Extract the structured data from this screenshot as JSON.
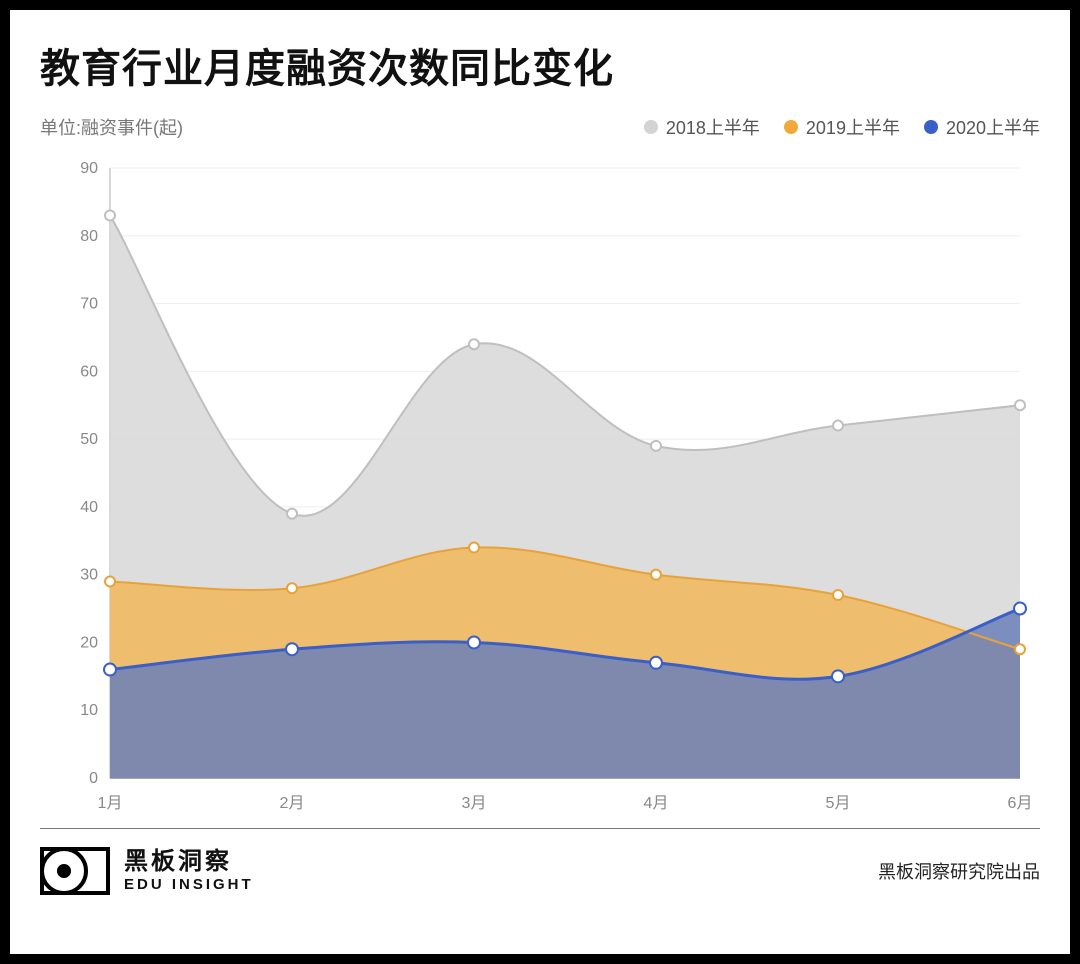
{
  "title": "教育行业月度融资次数同比变化",
  "unit_label": "单位:融资事件(起)",
  "legend": [
    {
      "label": "2018上半年",
      "color": "#d3d3d3"
    },
    {
      "label": "2019上半年",
      "color": "#f0a93a"
    },
    {
      "label": "2020上半年",
      "color": "#3a5fc8"
    }
  ],
  "chart": {
    "type": "area",
    "categories": [
      "1月",
      "2月",
      "3月",
      "4月",
      "5月",
      "6月"
    ],
    "series": [
      {
        "name": "2018上半年",
        "values": [
          83,
          39,
          64,
          49,
          52,
          55
        ],
        "fill": "#d9d9d9",
        "fill_opacity": 0.9,
        "line_color": "#bfbfbf",
        "line_width": 2,
        "marker_color": "#ffffff",
        "marker_stroke": "#bfbfbf",
        "marker_radius": 5
      },
      {
        "name": "2019上半年",
        "values": [
          29,
          28,
          34,
          30,
          27,
          19
        ],
        "fill": "#f2b75a",
        "fill_opacity": 0.85,
        "line_color": "#e8a23a",
        "line_width": 2,
        "marker_color": "#ffffff",
        "marker_stroke": "#e8a23a",
        "marker_radius": 5
      },
      {
        "name": "2020上半年",
        "values": [
          16,
          19,
          20,
          17,
          15,
          25
        ],
        "fill": "#6a80b8",
        "fill_opacity": 0.85,
        "line_color": "#3a5fc8",
        "line_width": 3,
        "marker_color": "#ffffff",
        "marker_stroke": "#3a5fc8",
        "marker_radius": 6
      }
    ],
    "y_axis": {
      "min": 0,
      "max": 90,
      "step": 10
    },
    "grid_color": "#eeeeee",
    "title_fontsize": 40,
    "label_fontsize": 16,
    "background_color": "#ffffff"
  },
  "footer": {
    "brand_cn": "黑板洞察",
    "brand_en": "EDU INSIGHT",
    "credit": "黑板洞察研究院出品"
  }
}
